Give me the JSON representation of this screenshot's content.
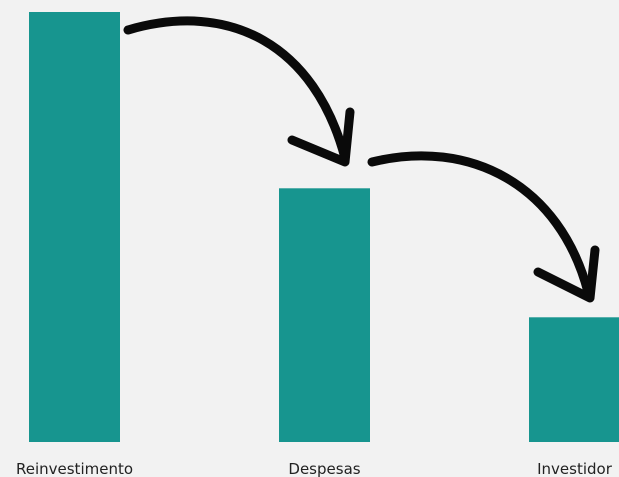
{
  "chart_data": {
    "type": "bar",
    "categories": [
      "Reinvestimento",
      "Despesas",
      "Investidor"
    ],
    "values": [
      100,
      59,
      29
    ],
    "ylim": [
      0,
      100
    ],
    "grid": false,
    "legend": "none",
    "bar_color": "#17958f",
    "arrow_color": "#0a0a0a",
    "annotations": [
      {
        "type": "curved-arrow",
        "from": "Reinvestimento",
        "to": "Despesas"
      },
      {
        "type": "curved-arrow",
        "from": "Despesas",
        "to": "Investidor"
      }
    ]
  },
  "colors": {
    "background": "#f2f2f2",
    "text": "#222222"
  }
}
